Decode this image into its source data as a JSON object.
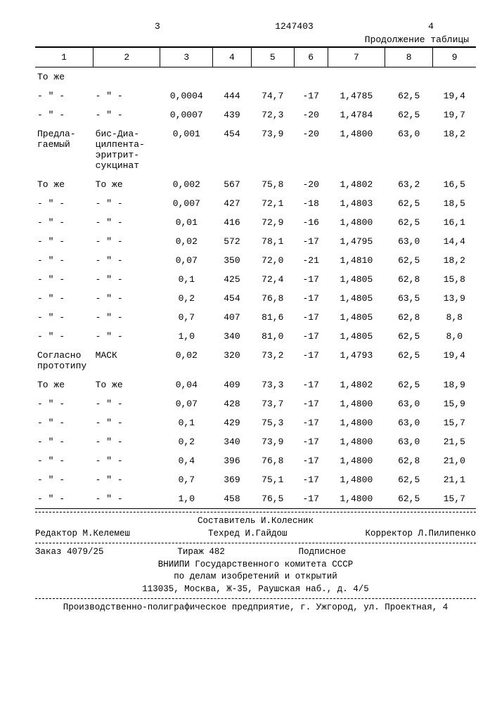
{
  "header": {
    "left_page": "3",
    "doc_number": "1247403",
    "right_page": "4",
    "continuation": "Продолжение таблицы"
  },
  "table": {
    "columns": [
      "1",
      "2",
      "3",
      "4",
      "5",
      "6",
      "7",
      "8",
      "9"
    ],
    "rows": [
      [
        "То же",
        "",
        "",
        "",
        "",
        "",
        "",
        "",
        ""
      ],
      [
        "- \" -",
        "- \" -",
        "0,0004",
        "444",
        "74,7",
        "-17",
        "1,4785",
        "62,5",
        "19,4"
      ],
      [
        "- \" -",
        "- \" -",
        "0,0007",
        "439",
        "72,3",
        "-20",
        "1,4784",
        "62,5",
        "19,7"
      ],
      [
        "Предла-\nгаемый",
        "бис-Диа-\nцилпента-\nэритрит-\nсукцинат",
        "0,001",
        "454",
        "73,9",
        "-20",
        "1,4800",
        "63,0",
        "18,2"
      ],
      [
        "То же",
        "То же",
        "0,002",
        "567",
        "75,8",
        "-20",
        "1,4802",
        "63,2",
        "16,5"
      ],
      [
        "- \" -",
        "- \" -",
        "0,007",
        "427",
        "72,1",
        "-18",
        "1,4803",
        "62,5",
        "18,5"
      ],
      [
        "- \" -",
        "- \" -",
        "0,01",
        "416",
        "72,9",
        "-16",
        "1,4800",
        "62,5",
        "16,1"
      ],
      [
        "- \" -",
        "- \" -",
        "0,02",
        "572",
        "78,1",
        "-17",
        "1,4795",
        "63,0",
        "14,4"
      ],
      [
        "- \" -",
        "- \" -",
        "0,07",
        "350",
        "72,0",
        "-21",
        "1,4810",
        "62,5",
        "18,2"
      ],
      [
        "- \" -",
        "- \" -",
        "0,1",
        "425",
        "72,4",
        "-17",
        "1,4805",
        "62,8",
        "15,8"
      ],
      [
        "- \" -",
        "- \" -",
        "0,2",
        "454",
        "76,8",
        "-17",
        "1,4805",
        "63,5",
        "13,9"
      ],
      [
        "- \" -",
        "- \" -",
        "0,7",
        "407",
        "81,6",
        "-17",
        "1,4805",
        "62,8",
        "8,8"
      ],
      [
        "- \" -",
        "- \" -",
        "1,0",
        "340",
        "81,0",
        "-17",
        "1,4805",
        "62,5",
        "8,0"
      ],
      [
        "Согласно\nпрототипу",
        "МАСК",
        "0,02",
        "320",
        "73,2",
        "-17",
        "1,4793",
        "62,5",
        "19,4"
      ],
      [
        "То же",
        "То же",
        "0,04",
        "409",
        "73,3",
        "-17",
        "1,4802",
        "62,5",
        "18,9"
      ],
      [
        "- \" -",
        "- \" -",
        "0,07",
        "428",
        "73,7",
        "-17",
        "1,4800",
        "63,0",
        "15,9"
      ],
      [
        "- \" -",
        "- \" -",
        "0,1",
        "429",
        "75,3",
        "-17",
        "1,4800",
        "63,0",
        "15,7"
      ],
      [
        "- \" -",
        "- \" -",
        "0,2",
        "340",
        "73,9",
        "-17",
        "1,4800",
        "63,0",
        "21,5"
      ],
      [
        "- \" -",
        "- \" -",
        "0,4",
        "396",
        "76,8",
        "-17",
        "1,4800",
        "62,8",
        "21,0"
      ],
      [
        "- \" -",
        "- \" -",
        "0,7",
        "369",
        "75,1",
        "-17",
        "1,4800",
        "62,5",
        "21,1"
      ],
      [
        "- \" -",
        "- \" -",
        "1,0",
        "458",
        "76,5",
        "-17",
        "1,4800",
        "62,5",
        "15,7"
      ]
    ]
  },
  "footer": {
    "editor": "Редактор М.Келемеш",
    "compiler": "Составитель И.Колесник",
    "tech": "Техред И.Гайдош",
    "corrector": "Корректор Л.Пилипенко",
    "order": "Заказ 4079/25",
    "copies": "Тираж 482",
    "subscr": "Подписное",
    "org1": "ВНИИПИ Государственного комитета СССР",
    "org2": "по делам изобретений и открытий",
    "addr1": "113035, Москва, Ж-35, Раушская наб., д. 4/5",
    "prod": "Производственно-полиграфическое предприятие, г. Ужгород, ул. Проектная, 4"
  }
}
